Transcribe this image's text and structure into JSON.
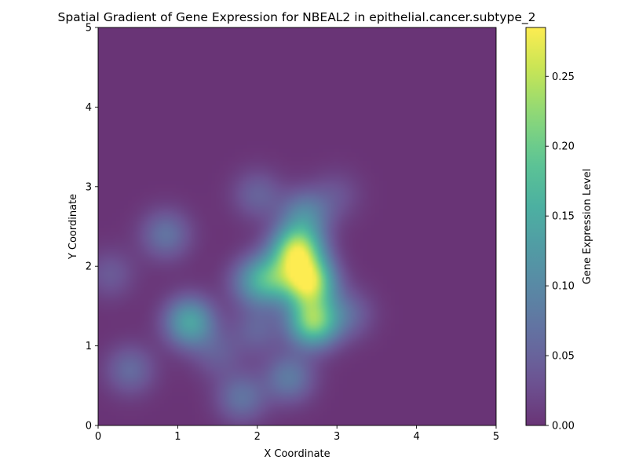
{
  "chart_data": {
    "type": "heatmap",
    "title": "Spatial Gradient of Gene Expression for NBEAL2 in epithelial.cancer.subtype_2",
    "xlabel": "X Coordinate",
    "ylabel": "Y Coordinate",
    "xlim": [
      0,
      5
    ],
    "ylim": [
      0,
      5
    ],
    "x_ticks": [
      "0",
      "1",
      "2",
      "3",
      "4",
      "5"
    ],
    "y_ticks": [
      "0",
      "1",
      "2",
      "3",
      "4",
      "5"
    ],
    "colormap": "viridis",
    "alpha": 0.8,
    "colorbar": {
      "label": "Gene Expression Level",
      "range": [
        0,
        0.285
      ],
      "ticks": [
        "0.00",
        "0.05",
        "0.10",
        "0.15",
        "0.20",
        "0.25"
      ]
    },
    "hotspots": [
      {
        "x": 2.5,
        "y": 2.2,
        "value": 0.23
      },
      {
        "x": 2.65,
        "y": 1.8,
        "value": 0.24
      },
      {
        "x": 2.7,
        "y": 1.3,
        "value": 0.21
      },
      {
        "x": 2.6,
        "y": 2.65,
        "value": 0.09
      },
      {
        "x": 2.2,
        "y": 1.85,
        "value": 0.12
      },
      {
        "x": 1.95,
        "y": 1.8,
        "value": 0.08
      },
      {
        "x": 2.4,
        "y": 0.6,
        "value": 0.08
      },
      {
        "x": 2.0,
        "y": 1.2,
        "value": 0.05
      },
      {
        "x": 1.15,
        "y": 1.3,
        "value": 0.14
      },
      {
        "x": 0.85,
        "y": 2.4,
        "value": 0.07
      },
      {
        "x": 0.4,
        "y": 0.7,
        "value": 0.06
      },
      {
        "x": 1.8,
        "y": 0.35,
        "value": 0.07
      },
      {
        "x": 2.0,
        "y": 2.9,
        "value": 0.05
      },
      {
        "x": 0.15,
        "y": 1.9,
        "value": 0.04
      },
      {
        "x": 3.15,
        "y": 1.4,
        "value": 0.05
      },
      {
        "x": 3.0,
        "y": 2.9,
        "value": 0.03
      },
      {
        "x": 1.5,
        "y": 0.9,
        "value": 0.04
      }
    ]
  }
}
